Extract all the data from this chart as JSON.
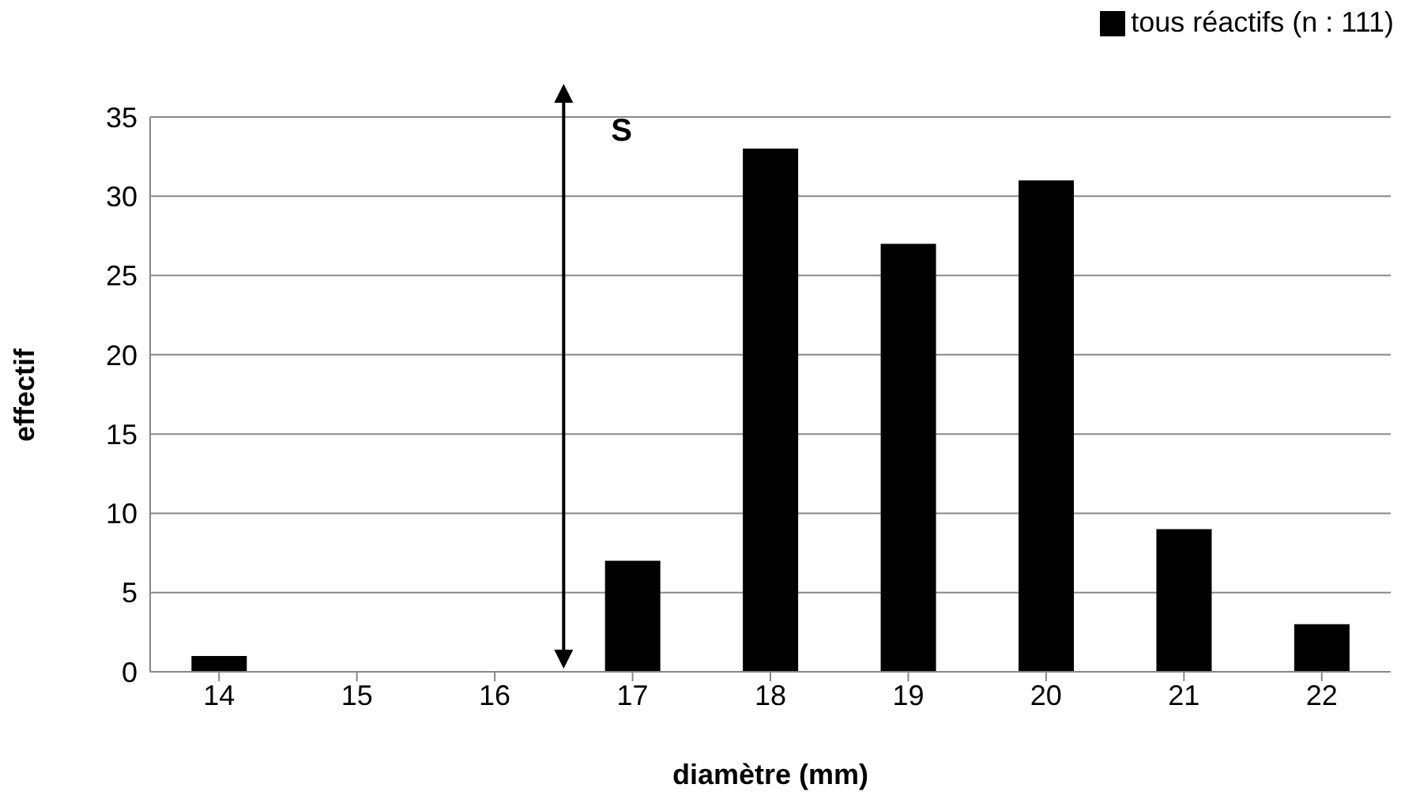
{
  "chart_data": {
    "type": "bar",
    "xlabel": "diamètre (mm)",
    "ylabel": "effectif",
    "categories": [
      "14",
      "15",
      "16",
      "17",
      "18",
      "19",
      "20",
      "21",
      "22"
    ],
    "series": [
      {
        "name": "tous réactifs (n : 111)",
        "color": "#000000",
        "values": [
          1,
          0,
          0,
          7,
          33,
          27,
          31,
          9,
          3
        ]
      }
    ],
    "ylim": [
      0,
      35
    ],
    "yticks": [
      0,
      5,
      10,
      15,
      20,
      25,
      30,
      35
    ],
    "grid": "y",
    "legend": "top right",
    "annotations": [
      "S"
    ]
  }
}
